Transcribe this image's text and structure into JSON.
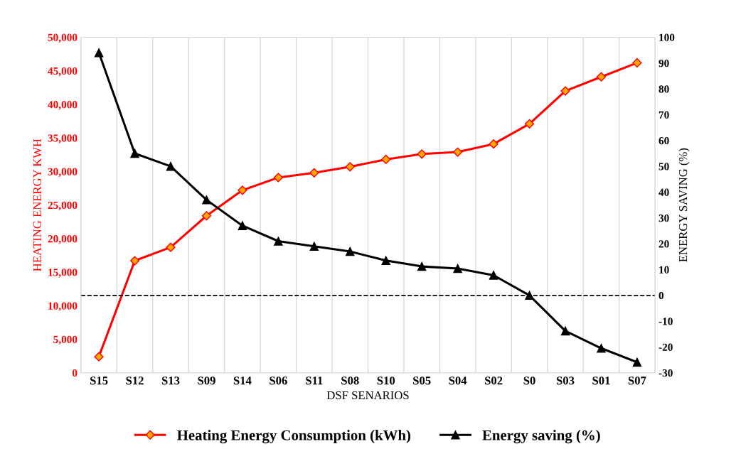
{
  "chart_data": {
    "type": "line",
    "xlabel": "DSF SENARIOS",
    "ylabel": "HEATING ENERGY KWH",
    "y2label": "ENERGY SAVING (%)",
    "categories": [
      "S15",
      "S12",
      "S13",
      "S09",
      "S14",
      "S06",
      "S11",
      "S08",
      "S10",
      "S05",
      "S04",
      "S02",
      "S0",
      "S03",
      "S01",
      "S07"
    ],
    "series": [
      {
        "name": "Heating Energy Consumption (kWh)",
        "color": "#ff0000",
        "marker": "diamond",
        "values": [
          2400,
          16700,
          18700,
          23400,
          27200,
          29100,
          29800,
          30700,
          31800,
          32600,
          32900,
          34100,
          37100,
          42000,
          44100,
          46200
        ]
      },
      {
        "name": "Energy saving (%)",
        "color": "#000000",
        "marker": "triangle",
        "axis": "y2",
        "values": [
          94,
          55,
          50,
          37,
          27,
          21,
          19,
          17,
          13.5,
          11.2,
          10.4,
          7.8,
          0,
          -13.8,
          -20.5,
          -25.9
        ]
      }
    ],
    "ylim": [
      0,
      50000
    ],
    "yticks": [
      {
        "value": 0,
        "label": "0"
      },
      {
        "value": 5000,
        "label": "5,000"
      },
      {
        "value": 10000,
        "label": "10,000"
      },
      {
        "value": 15000,
        "label": "15,000"
      },
      {
        "value": 20000,
        "label": "20,000"
      },
      {
        "value": 25000,
        "label": "25,000"
      },
      {
        "value": 30000,
        "label": "30,000"
      },
      {
        "value": 35000,
        "label": "35,000"
      },
      {
        "value": 40000,
        "label": "40,000"
      },
      {
        "value": 45000,
        "label": "45,000"
      },
      {
        "value": 50000,
        "label": "50,000"
      }
    ],
    "y2lim": [
      -30,
      100
    ],
    "y2ticks": [
      -30,
      -20,
      -10,
      0,
      10,
      20,
      30,
      40,
      50,
      60,
      70,
      80,
      90,
      100
    ],
    "ref_lines": [
      {
        "axis": "y2",
        "value": 0,
        "color": "#000000",
        "line_style": "dashed"
      }
    ],
    "grid": "x",
    "legend": "bottom",
    "line_style": "solid"
  }
}
